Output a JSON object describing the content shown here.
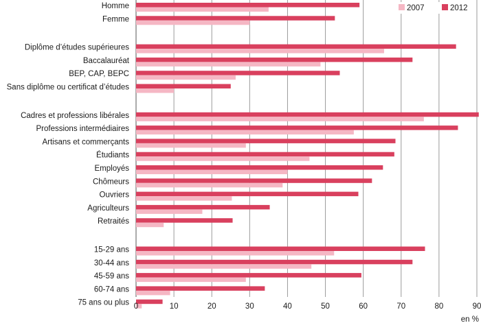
{
  "chart_data": {
    "type": "bar",
    "orientation": "horizontal",
    "title": "",
    "xlabel": "",
    "ylabel": "",
    "unit_label": "en %",
    "xlim": [
      0,
      90
    ],
    "xticks": [
      0,
      10,
      20,
      30,
      40,
      50,
      60,
      70,
      80,
      90
    ],
    "grid": true,
    "legend_position": "top-right",
    "groups": [
      [
        "Homme",
        "Femme"
      ],
      [
        "Diplôme d’études supérieures",
        "Baccalauréat",
        "BEP, CAP, BEPC",
        "Sans diplôme ou certificat d’études"
      ],
      [
        "Cadres et professions libérales",
        "Professions intermédiaires",
        "Artisans et commerçants",
        "Étudiants",
        "Employés",
        "Chômeurs",
        "Ouvriers",
        "Agriculteurs",
        "Retraités"
      ],
      [
        "15-29 ans",
        "30-44 ans",
        "45-59 ans",
        "60-74 ans",
        "75 ans ou plus"
      ]
    ],
    "series": [
      {
        "name": "2012",
        "color": "#d9405e",
        "values": [
          59,
          52.5,
          84.5,
          73,
          53.8,
          25,
          90.5,
          85,
          68.5,
          68.2,
          65.2,
          62.3,
          58.7,
          35.3,
          25.5,
          76.3,
          73,
          59.5,
          34,
          7
        ]
      },
      {
        "name": "2007",
        "color": "#f5b7c4",
        "values": [
          35,
          30,
          65.5,
          48.7,
          26.3,
          10,
          76,
          57.5,
          29,
          45.8,
          40,
          38.7,
          25.3,
          17.5,
          7.3,
          52.3,
          46.3,
          29,
          9,
          1.5
        ]
      }
    ]
  }
}
